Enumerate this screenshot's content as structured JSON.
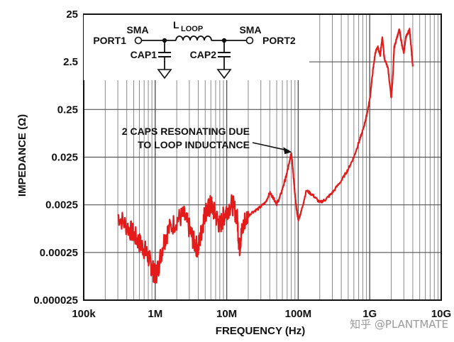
{
  "chart_data": {
    "type": "line",
    "title": "",
    "xlabel": "FREQUENCY (Hz)",
    "ylabel": "IMPEDANCE (Ω)",
    "x_scale": "log",
    "y_scale": "log",
    "xlim": [
      100000,
      10000000000
    ],
    "ylim": [
      2.5e-05,
      25
    ],
    "x_ticks": [
      {
        "value": 100000,
        "label": "100k"
      },
      {
        "value": 1000000,
        "label": "1M"
      },
      {
        "value": 10000000,
        "label": "10M"
      },
      {
        "value": 100000000,
        "label": "100M"
      },
      {
        "value": 1000000000,
        "label": "1G"
      },
      {
        "value": 10000000000,
        "label": "10G"
      }
    ],
    "y_ticks": [
      {
        "value": 2.5e-05,
        "label": "0.000025"
      },
      {
        "value": 0.00025,
        "label": "0.00025"
      },
      {
        "value": 0.0025,
        "label": "0.0025"
      },
      {
        "value": 0.025,
        "label": "0.025"
      },
      {
        "value": 0.25,
        "label": "0.25"
      },
      {
        "value": 2.5,
        "label": "2.5"
      },
      {
        "value": 25,
        "label": "25"
      }
    ],
    "grid": true,
    "line_color": "#e31b1b",
    "series": [
      {
        "x": [
          300000,
          400000,
          500000,
          600000,
          700000,
          800000,
          900000,
          1000000,
          1100000,
          1300000,
          1500000,
          2000000,
          2500000,
          3000000,
          3500000,
          4000000,
          4500000,
          5000000,
          5500000,
          6000000,
          7000000,
          8000000,
          9000000,
          10000000,
          12000000,
          14000000,
          15000000,
          16000000,
          18000000,
          22000000,
          28000000,
          35000000,
          40000000,
          45000000,
          50000000,
          55000000,
          65000000,
          70000000,
          75000000,
          80000000,
          85000000,
          90000000,
          95000000,
          100000000,
          110000000,
          130000000,
          160000000,
          200000000,
          240000000,
          300000000,
          400000000,
          500000000,
          600000000,
          700000000,
          800000000,
          900000000,
          1000000000,
          1100000000,
          1200000000,
          1300000000,
          1400000000,
          1500000000,
          1600000000,
          1800000000,
          2000000000,
          2100000000,
          2200000000,
          2400000000,
          2600000000,
          2800000000,
          3000000000,
          3200000000,
          3400000000,
          3600000000,
          3800000000,
          4000000000
        ],
        "y": [
          0.0015,
          0.0009,
          0.0006,
          0.0004,
          0.0003,
          0.0002,
          0.00012,
          8e-05,
          0.00012,
          0.0004,
          0.0007,
          0.0012,
          0.0015,
          0.0008,
          0.0004,
          0.0003,
          0.0008,
          0.0018,
          0.002,
          0.0025,
          0.0015,
          0.0009,
          0.0014,
          0.002,
          0.0026,
          0.0014,
          0.0003,
          0.0006,
          0.0012,
          0.0017,
          0.0021,
          0.0028,
          0.0045,
          0.0035,
          0.0026,
          0.0035,
          0.008,
          0.012,
          0.02,
          0.032,
          0.012,
          0.004,
          0.002,
          0.0012,
          0.0018,
          0.005,
          0.004,
          0.0028,
          0.0032,
          0.0045,
          0.008,
          0.014,
          0.025,
          0.05,
          0.09,
          0.18,
          0.4,
          1.5,
          4,
          5,
          3.5,
          8,
          3,
          1.8,
          0.45,
          1.2,
          5,
          8,
          12,
          6,
          4,
          8,
          10,
          12,
          5,
          2
        ]
      }
    ],
    "annotations": [
      {
        "text_lines": [
          "2 CAPS RESONATING DUE",
          "TO LOOP INDUCTANCE"
        ],
        "x": 85000000,
        "y": 0.032
      }
    ],
    "inset_schematic": {
      "labels": [
        "SMA",
        "PORT1",
        "L",
        "LOOP",
        "SMA",
        "PORT2",
        "CAP1",
        "CAP2"
      ]
    },
    "watermark": "知乎 @PLANTMATE"
  }
}
